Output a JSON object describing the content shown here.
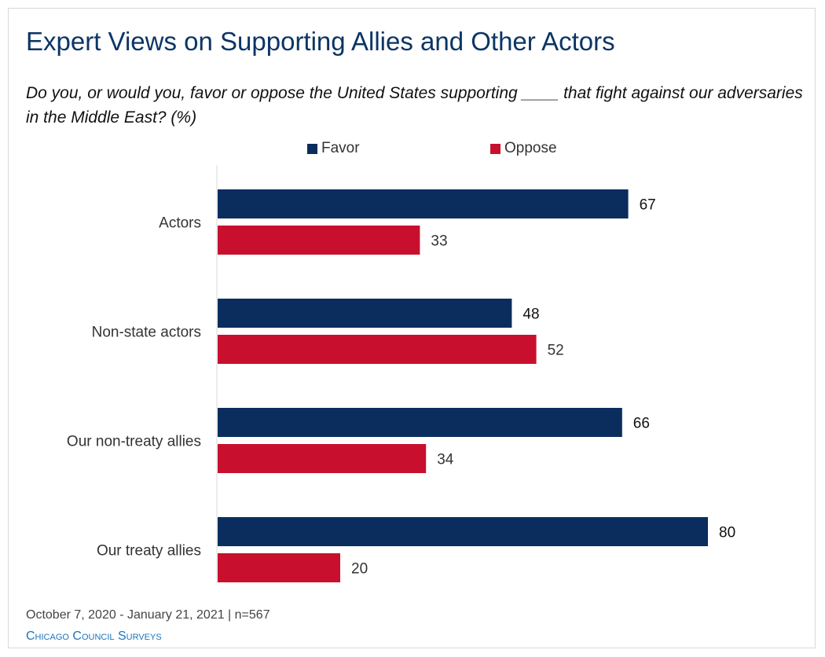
{
  "title": "Expert Views on Supporting Allies and Other Actors",
  "subtitle": "Do you, or would you, favor or oppose the United States supporting ____ that fight against our adversaries in the Middle East? (%)",
  "footer": {
    "date": "October 7, 2020 - January 21, 2021 | n=567",
    "source": "Chicago Council Surveys"
  },
  "colors": {
    "favor": "#0b2d5e",
    "oppose": "#c8102e",
    "title": "#0b3565",
    "source": "#1b75bc"
  },
  "chart_data": {
    "type": "bar",
    "orientation": "horizontal",
    "categories": [
      "Actors",
      "Non-state actors",
      "Our non-treaty allies",
      "Our treaty allies"
    ],
    "series": [
      {
        "name": "Favor",
        "values": [
          67,
          48,
          66,
          80
        ]
      },
      {
        "name": "Oppose",
        "values": [
          33,
          52,
          34,
          20
        ]
      }
    ],
    "xlim": [
      0,
      100
    ],
    "grid": false,
    "legend": "top-center",
    "data_labels": true
  }
}
